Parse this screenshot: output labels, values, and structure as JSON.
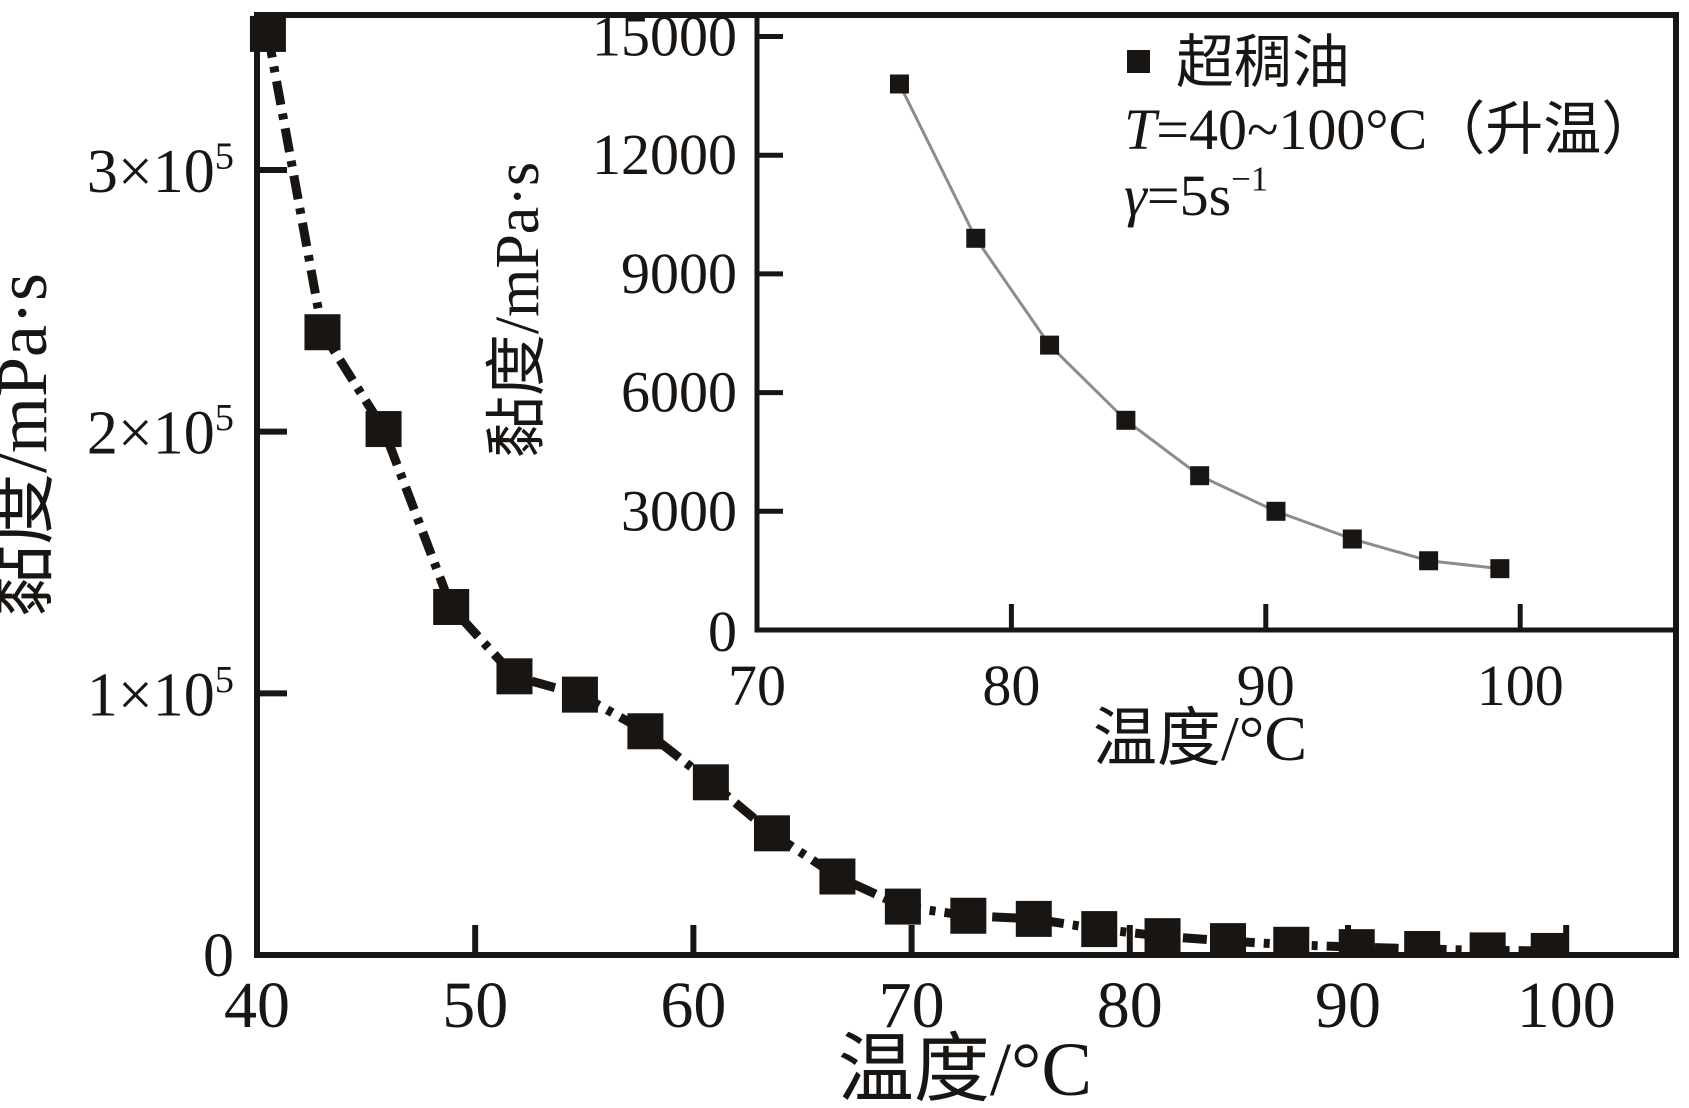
{
  "figure": {
    "background": "#ffffff",
    "ink": "#191512",
    "inset_line_color": "#8c8c8c",
    "description": "黏度-温度曲线 (viscosity vs temperature, super heavy oil)"
  },
  "chart_data": [
    {
      "id": "main",
      "type": "scatter",
      "title": "",
      "xlabel": "温度/°C",
      "ylabel": "黏度/mPa·s",
      "xlim": [
        40,
        105
      ],
      "ylim": [
        0,
        359000
      ],
      "grid": false,
      "legend_position": "none",
      "x_ticks": [
        {
          "value": 40,
          "label": "40"
        },
        {
          "value": 50,
          "label": "50"
        },
        {
          "value": 60,
          "label": "60"
        },
        {
          "value": 70,
          "label": "70"
        },
        {
          "value": 80,
          "label": "80"
        },
        {
          "value": 90,
          "label": "90"
        },
        {
          "value": 100,
          "label": "100"
        }
      ],
      "y_ticks": [
        {
          "value": 0,
          "label": "0"
        },
        {
          "value": 100000,
          "label": "1×10^5"
        },
        {
          "value": 200000,
          "label": "2×10^5"
        },
        {
          "value": 300000,
          "label": "3×10^5"
        }
      ],
      "series": [
        {
          "name": "超稠油",
          "marker": "filled-square",
          "line": "thick-dash-dot-black",
          "x": [
            40.5,
            43.0,
            45.8,
            48.9,
            51.8,
            54.8,
            57.8,
            60.8,
            63.6,
            66.6,
            69.6,
            72.6,
            75.6,
            78.6,
            81.5,
            84.5,
            87.4,
            90.4,
            93.4,
            96.4,
            99.2
          ],
          "y": [
            352000,
            238000,
            201000,
            133000,
            106500,
            99500,
            85500,
            66000,
            46500,
            30000,
            18500,
            15000,
            13800,
            9900,
            7200,
            5300,
            3900,
            3000,
            2300,
            1750,
            1550
          ]
        }
      ]
    },
    {
      "id": "inset",
      "type": "scatter",
      "title": "",
      "xlabel": "温度/°C",
      "ylabel": "黏度/mPa·s",
      "xlim": [
        70,
        106
      ],
      "ylim": [
        0,
        15700
      ],
      "grid": false,
      "legend_position": "top-right-inside",
      "x_ticks": [
        {
          "value": 70,
          "label": "70"
        },
        {
          "value": 80,
          "label": "80"
        },
        {
          "value": 90,
          "label": "90"
        },
        {
          "value": 100,
          "label": "100"
        }
      ],
      "y_ticks": [
        {
          "value": 0,
          "label": "0"
        },
        {
          "value": 3000,
          "label": "3000"
        },
        {
          "value": 6000,
          "label": "6000"
        },
        {
          "value": 9000,
          "label": "9000"
        },
        {
          "value": 12000,
          "label": "12000"
        },
        {
          "value": 15000,
          "label": "15000"
        }
      ],
      "legend": {
        "marker": "filled-square",
        "lines": [
          {
            "with_marker": true,
            "segments": [
              {
                "text": "超稠油"
              }
            ]
          },
          {
            "with_marker": false,
            "segments": [
              {
                "text": "T",
                "italic": true
              },
              {
                "text": "=40~100°C（升温）"
              }
            ]
          },
          {
            "with_marker": false,
            "segments": [
              {
                "text": "γ",
                "italic": true
              },
              {
                "text": "=5s"
              },
              {
                "text": "−1",
                "sup": true
              }
            ]
          }
        ]
      },
      "series": [
        {
          "name": "超稠油",
          "marker": "filled-square",
          "line": "thin-solid-gray",
          "x": [
            75.6,
            78.6,
            81.5,
            84.5,
            87.4,
            90.4,
            93.4,
            96.4,
            99.2
          ],
          "y": [
            13800,
            9900,
            7200,
            5300,
            3900,
            3000,
            2300,
            1750,
            1550
          ]
        }
      ]
    }
  ]
}
